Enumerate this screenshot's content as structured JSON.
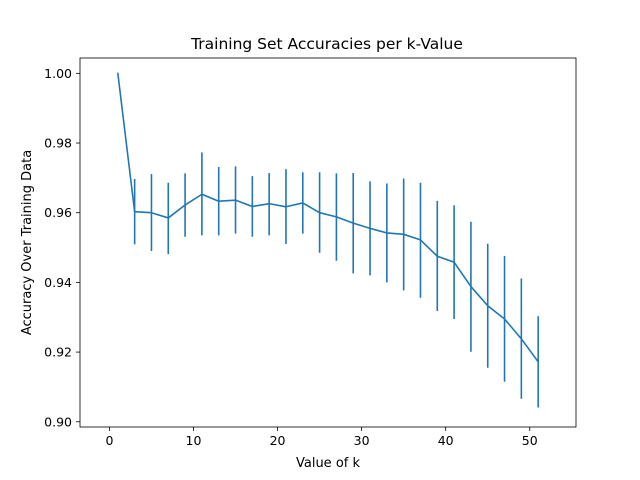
{
  "chart_data": {
    "type": "line",
    "title": "Training Set Accuracies per k-Value",
    "xlabel": "Value of k",
    "ylabel": "Accuracy Over Training Data",
    "xlim": [
      -3.5,
      55.5
    ],
    "ylim": [
      0.8985,
      1.0044
    ],
    "xticks": [
      0,
      10,
      20,
      30,
      40,
      50
    ],
    "xtick_labels": [
      "0",
      "10",
      "20",
      "30",
      "40",
      "50"
    ],
    "yticks": [
      0.9,
      0.92,
      0.94,
      0.96,
      0.98,
      1.0
    ],
    "ytick_labels": [
      "0.90",
      "0.92",
      "0.94",
      "0.96",
      "0.98",
      "1.00"
    ],
    "grid": false,
    "series": [
      {
        "color": "#1f77b4",
        "x": [
          1,
          3,
          5,
          7,
          9,
          11,
          13,
          15,
          17,
          19,
          21,
          23,
          25,
          27,
          29,
          31,
          33,
          35,
          37,
          39,
          41,
          43,
          45,
          47,
          49,
          51
        ],
        "y": [
          1.0,
          0.9603,
          0.96,
          0.9585,
          0.9622,
          0.9653,
          0.9633,
          0.9636,
          0.9618,
          0.9626,
          0.9617,
          0.9628,
          0.96,
          0.9588,
          0.957,
          0.9555,
          0.9542,
          0.9538,
          0.9522,
          0.9475,
          0.9458,
          0.9388,
          0.9333,
          0.9295,
          0.9238,
          0.9172
        ],
        "err_low": [
          1.0,
          0.9509,
          0.949,
          0.9481,
          0.9531,
          0.9535,
          0.9535,
          0.954,
          0.9531,
          0.9535,
          0.951,
          0.954,
          0.9485,
          0.9462,
          0.9426,
          0.942,
          0.94,
          0.9377,
          0.9356,
          0.9318,
          0.9295,
          0.9201,
          0.9155,
          0.9115,
          0.9066,
          0.9041
        ],
        "err_high": [
          1.0,
          0.9697,
          0.9711,
          0.9686,
          0.9713,
          0.9773,
          0.9731,
          0.9733,
          0.9705,
          0.9714,
          0.9725,
          0.9716,
          0.9716,
          0.9713,
          0.9714,
          0.969,
          0.9684,
          0.9698,
          0.9686,
          0.9634,
          0.9621,
          0.9574,
          0.9511,
          0.9476,
          0.9411,
          0.9303
        ]
      }
    ]
  }
}
